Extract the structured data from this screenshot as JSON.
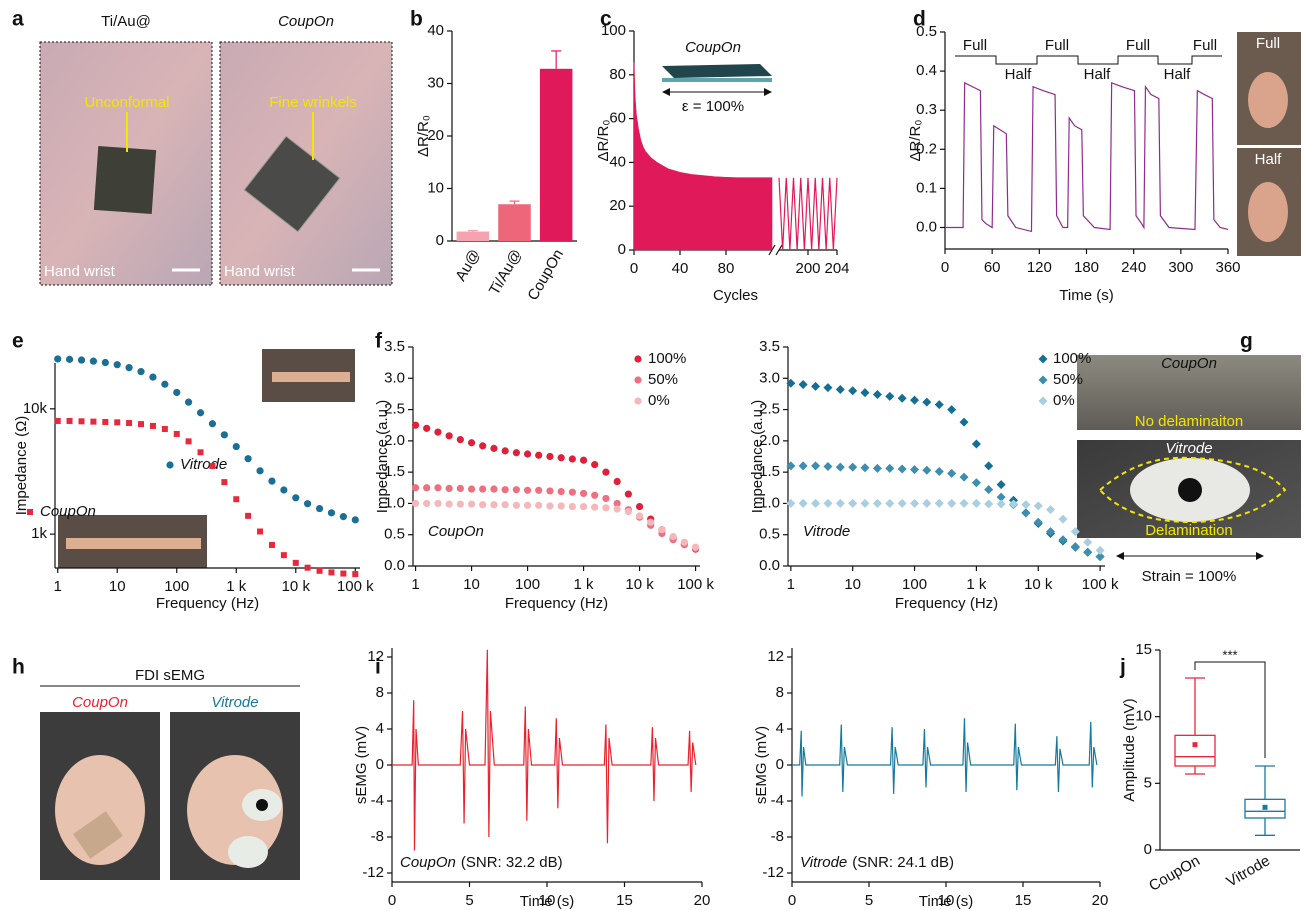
{
  "photos": {
    "a": {
      "panel": "a",
      "titles": [
        "Ti/Au@",
        "CoupOn"
      ],
      "callouts": [
        "Unconformal",
        "Fine wrinkels"
      ],
      "location": [
        "Hand wrist",
        "Hand wrist"
      ]
    },
    "d": {
      "labels": [
        "Full",
        "Half"
      ]
    },
    "g": {
      "panel": "g",
      "titles": [
        "CoupOn",
        "Vitrode"
      ],
      "callouts": [
        "No delaminaiton",
        "Delamination"
      ],
      "strain": "Strain = 100%"
    },
    "h": {
      "panel": "h",
      "title": "FDI sEMG",
      "labels": [
        "CoupOn",
        "Vitrode"
      ]
    }
  },
  "chart_data": [
    {
      "type": "bar",
      "panel": "b",
      "ylabel": "ΔR/R₀",
      "categories": [
        "Au@",
        "Ti/Au@",
        "CoupOn"
      ],
      "values": [
        1.8,
        7,
        32.8
      ],
      "errors": [
        0.2,
        0.6,
        3.4
      ],
      "colors": [
        "#f5a3ae",
        "#ee6679",
        "#e0195a"
      ],
      "ylim": [
        0,
        40
      ],
      "yticks": [
        0,
        10,
        20,
        30,
        40
      ]
    },
    {
      "type": "area",
      "panel": "c",
      "xlabel": "Cycles",
      "ylabel": "ΔR/R₀",
      "inset_title": "CoupOn",
      "inset_text": "ε = 100%",
      "xlim": [
        0,
        204
      ],
      "xbreak": [
        120,
        196
      ],
      "xticks": [
        0,
        40,
        80,
        200,
        204
      ],
      "ylim": [
        0,
        100
      ],
      "yticks": [
        0,
        20,
        40,
        60,
        80,
        100
      ],
      "series": [
        {
          "color": "#e0195a",
          "fill": true,
          "x": [
            0,
            1,
            2,
            4,
            6,
            8,
            10,
            15,
            20,
            30,
            40,
            50,
            60,
            70,
            80,
            90,
            100,
            110,
            120
          ],
          "values": [
            86,
            70,
            62,
            55,
            50,
            47,
            45,
            42,
            40,
            37,
            35.5,
            34.5,
            34,
            33.5,
            33.2,
            33,
            33,
            33,
            33
          ]
        },
        {
          "color": "#e0195a",
          "x": [
            196,
            196.5,
            197,
            197.5,
            198,
            198.5,
            199,
            199.5,
            200,
            200.5,
            201,
            201.5,
            202,
            202.5,
            203,
            203.5,
            204
          ],
          "values": [
            33,
            0,
            33,
            0,
            33,
            0,
            33,
            0,
            33,
            0,
            33,
            0,
            33,
            0,
            33,
            0,
            33
          ]
        }
      ]
    },
    {
      "type": "line",
      "panel": "d",
      "xlabel": "Time (s)",
      "ylabel": "ΔR/R₀",
      "annotations": [
        "Full",
        "Half",
        "Full",
        "Half",
        "Full",
        "Half",
        "Full"
      ],
      "xlim": [
        0,
        360
      ],
      "xticks": [
        0,
        60,
        120,
        180,
        240,
        300,
        360
      ],
      "ylim": [
        -0.055,
        0.5
      ],
      "yticks": [
        {
          "value": 0,
          "label": "0.0"
        },
        0.1,
        0.2,
        0.3,
        0.4,
        0.5
      ],
      "series": [
        {
          "color": "#8e2c90",
          "x": [
            0,
            23,
            25,
            35,
            45,
            47,
            52,
            60,
            62,
            70,
            78,
            80,
            90,
            110,
            112,
            125,
            140,
            142,
            150,
            156,
            158,
            165,
            174,
            176,
            190,
            210,
            212,
            225,
            241,
            243,
            250,
            253,
            255,
            262,
            272,
            274,
            285,
            318,
            321,
            330,
            340,
            342,
            350,
            360
          ],
          "values": [
            0,
            0,
            0.37,
            0.36,
            0.35,
            0.02,
            0.01,
            0,
            0.26,
            0.25,
            0.24,
            0.03,
            0,
            -0.01,
            0.36,
            0.35,
            0.34,
            0.03,
            0,
            0,
            0.28,
            0.26,
            0.25,
            0.03,
            0,
            -0.005,
            0.37,
            0.36,
            0.35,
            0.03,
            0.01,
            0,
            0.36,
            0.34,
            0.33,
            0.03,
            0,
            -0.005,
            0.35,
            0.34,
            0.33,
            0.02,
            0,
            -0.005
          ]
        }
      ]
    },
    {
      "type": "scatter",
      "panel": "e",
      "xlabel": "Frequency (Hz)",
      "ylabel": "Impedance (Ω)",
      "xlog": true,
      "ylog": true,
      "xlim": [
        0.9,
        120000
      ],
      "xticks": [
        1,
        10,
        100,
        {
          "value": 1000,
          "label": "1 k"
        },
        {
          "value": 10000,
          "label": "10 k"
        },
        {
          "value": 100000,
          "label": "100 k"
        }
      ],
      "ylim": [
        537,
        23200
      ],
      "yticks": [
        {
          "value": 1000,
          "label": "1k"
        },
        {
          "value": 10000,
          "label": "10k"
        }
      ],
      "x": [
        1,
        1.58,
        2.51,
        3.98,
        6.31,
        10,
        15.8,
        25.1,
        39.8,
        63.1,
        100,
        158,
        251,
        398,
        631,
        1000,
        1580,
        2510,
        3980,
        6310,
        10000,
        15800,
        25100,
        39800,
        63100,
        100000
      ],
      "series": [
        {
          "name": "Vitrode",
          "color": "#1a6f96",
          "marker": "circle",
          "values": [
            25000,
            24800,
            24500,
            24000,
            23400,
            22500,
            21300,
            19800,
            17900,
            15700,
            13500,
            11300,
            9300,
            7600,
            6200,
            5000,
            4000,
            3200,
            2650,
            2250,
            1950,
            1750,
            1600,
            1480,
            1380,
            1300
          ]
        },
        {
          "name": "CoupOn",
          "color": "#e8283c",
          "marker": "square",
          "values": [
            8000,
            8000,
            7950,
            7900,
            7850,
            7800,
            7700,
            7550,
            7300,
            6900,
            6300,
            5500,
            4500,
            3500,
            2600,
            1900,
            1400,
            1050,
            820,
            680,
            590,
            540,
            510,
            495,
            485,
            480
          ]
        }
      ]
    },
    {
      "type": "scatter",
      "panel": "f",
      "xlabel": "Frequency (Hz)",
      "ylabel": "Impedance (a.u.)",
      "annotation": "CoupOn",
      "xlog": true,
      "legend": "upper right",
      "xlim": [
        0.9,
        120000
      ],
      "xticks": [
        1,
        10,
        100,
        {
          "value": 1000,
          "label": "1 k"
        },
        {
          "value": 10000,
          "label": "10 k"
        },
        {
          "value": 100000,
          "label": "100 k"
        }
      ],
      "ylim": [
        0,
        3.5
      ],
      "yticks": [
        {
          "value": 0,
          "label": "0.0"
        },
        0.5,
        {
          "value": 1,
          "label": "1.0"
        },
        1.5,
        {
          "value": 2,
          "label": "2.0"
        },
        2.5,
        {
          "value": 3,
          "label": "3.0"
        },
        3.5
      ],
      "x": [
        1,
        1.58,
        2.51,
        3.98,
        6.31,
        10,
        15.8,
        25.1,
        39.8,
        63.1,
        100,
        158,
        251,
        398,
        631,
        1000,
        1580,
        2510,
        3980,
        6310,
        10000,
        15800,
        25100,
        39800,
        63100,
        100000
      ],
      "series": [
        {
          "name": "100%",
          "color": "#e0203a",
          "marker": "circle",
          "values": [
            2.25,
            2.2,
            2.14,
            2.08,
            2.02,
            1.97,
            1.92,
            1.88,
            1.84,
            1.81,
            1.79,
            1.77,
            1.75,
            1.73,
            1.71,
            1.69,
            1.62,
            1.5,
            1.35,
            1.15,
            0.95,
            0.75,
            0.58,
            0.45,
            0.35,
            0.27
          ]
        },
        {
          "name": "50%",
          "color": "#ee7080",
          "marker": "circle",
          "values": [
            1.25,
            1.25,
            1.25,
            1.24,
            1.24,
            1.23,
            1.23,
            1.23,
            1.22,
            1.22,
            1.21,
            1.21,
            1.2,
            1.19,
            1.18,
            1.16,
            1.13,
            1.08,
            1,
            0.9,
            0.78,
            0.65,
            0.52,
            0.42,
            0.34,
            0.28
          ]
        },
        {
          "name": "0%",
          "color": "#f6b7ba",
          "marker": "circle",
          "values": [
            1,
            1,
            1,
            0.99,
            0.99,
            0.99,
            0.98,
            0.98,
            0.98,
            0.97,
            0.97,
            0.97,
            0.96,
            0.96,
            0.95,
            0.95,
            0.94,
            0.93,
            0.91,
            0.87,
            0.8,
            0.7,
            0.58,
            0.47,
            0.38,
            0.3
          ]
        }
      ]
    },
    {
      "type": "scatter",
      "xlabel": "Frequency (Hz)",
      "ylabel": "Impedance (a.u.)",
      "annotation": "Vitrode",
      "xlog": true,
      "legend": "upper right",
      "xlim": [
        0.9,
        120000
      ],
      "xticks": [
        1,
        10,
        100,
        {
          "value": 1000,
          "label": "1 k"
        },
        {
          "value": 10000,
          "label": "10 k"
        },
        {
          "value": 100000,
          "label": "100 k"
        }
      ],
      "ylim": [
        0,
        3.5
      ],
      "yticks": [
        {
          "value": 0,
          "label": "0.0"
        },
        0.5,
        {
          "value": 1,
          "label": "1.0"
        },
        1.5,
        {
          "value": 2,
          "label": "2.0"
        },
        2.5,
        {
          "value": 3,
          "label": "3.0"
        },
        3.5
      ],
      "x": [
        1,
        1.58,
        2.51,
        3.98,
        6.31,
        10,
        15.8,
        25.1,
        39.8,
        63.1,
        100,
        158,
        251,
        398,
        631,
        1000,
        1580,
        2510,
        3980,
        6310,
        10000,
        15800,
        25100,
        39800,
        63100,
        100000
      ],
      "series": [
        {
          "name": "100%",
          "color": "#146f94",
          "marker": "diamond",
          "values": [
            2.92,
            2.9,
            2.87,
            2.85,
            2.82,
            2.8,
            2.77,
            2.74,
            2.71,
            2.68,
            2.65,
            2.62,
            2.58,
            2.5,
            2.3,
            1.95,
            1.6,
            1.3,
            1.05,
            0.85,
            0.68,
            0.52,
            0.4,
            0.3,
            0.22,
            0.15
          ]
        },
        {
          "name": "50%",
          "color": "#3d8db0",
          "marker": "diamond",
          "values": [
            1.6,
            1.6,
            1.6,
            1.59,
            1.58,
            1.58,
            1.57,
            1.56,
            1.56,
            1.55,
            1.54,
            1.53,
            1.51,
            1.48,
            1.42,
            1.33,
            1.22,
            1.1,
            0.98,
            0.85,
            0.7,
            0.55,
            0.42,
            0.31,
            0.22,
            0.15
          ]
        },
        {
          "name": "0%",
          "color": "#a8cfe0",
          "marker": "diamond",
          "values": [
            1,
            1,
            1,
            1,
            1,
            1,
            1,
            1,
            1,
            1,
            1,
            1,
            1,
            1,
            1,
            1,
            0.99,
            0.99,
            0.99,
            0.98,
            0.96,
            0.9,
            0.75,
            0.55,
            0.38,
            0.25
          ]
        }
      ]
    },
    {
      "type": "line",
      "panel": "i",
      "xlabel": "Time (s)",
      "ylabel": "sEMG (mV)",
      "annotation": {
        "name": "CoupOn",
        "text": "(SNR: 32.2 dB)"
      },
      "xlim": [
        0,
        20
      ],
      "xticks": [
        0,
        5,
        10,
        15,
        20
      ],
      "ylim": [
        -13,
        13
      ],
      "yticks": [
        -12,
        -8,
        -4,
        0,
        4,
        8,
        12
      ],
      "series": [
        {
          "color": "#e8232e",
          "x": [
            0,
            1.3,
            1.4,
            1.45,
            1.55,
            1.7,
            4.4,
            4.55,
            4.65,
            4.75,
            5,
            6,
            6.15,
            6.25,
            6.35,
            6.6,
            8.5,
            8.6,
            8.7,
            8.8,
            9,
            10.5,
            10.6,
            10.7,
            10.8,
            11,
            13.7,
            13.8,
            13.9,
            14,
            14.2,
            16.7,
            16.8,
            16.9,
            17,
            17.2,
            19.1,
            19.2,
            19.3,
            19.4,
            19.6
          ],
          "values": [
            0,
            0,
            7.2,
            -9.5,
            4,
            0,
            0,
            6,
            -6.5,
            4,
            0,
            0,
            12.8,
            -8,
            6,
            0,
            0,
            6.5,
            -6.2,
            4,
            0,
            0,
            5.2,
            -4.8,
            3,
            0,
            0,
            4.5,
            -8.7,
            3,
            0,
            0,
            4.2,
            -4,
            3,
            0,
            0,
            3.8,
            -3,
            2.5,
            0
          ]
        }
      ]
    },
    {
      "type": "line",
      "xlabel": "Time (s)",
      "ylabel": "sEMG (mV)",
      "annotation": {
        "name": "Vitrode",
        "text": "(SNR: 24.1 dB)"
      },
      "xlim": [
        0,
        20
      ],
      "xticks": [
        0,
        5,
        10,
        15,
        20
      ],
      "ylim": [
        -13,
        13
      ],
      "yticks": [
        -12,
        -8,
        -4,
        0,
        4,
        8,
        12
      ],
      "series": [
        {
          "color": "#157a9c",
          "x": [
            0,
            0.5,
            0.6,
            0.65,
            0.75,
            0.9,
            3.1,
            3.2,
            3.3,
            3.4,
            3.6,
            6.4,
            6.5,
            6.6,
            6.7,
            6.9,
            8.5,
            8.6,
            8.7,
            8.8,
            9,
            11.1,
            11.2,
            11.3,
            11.4,
            11.6,
            14.4,
            14.5,
            14.6,
            14.7,
            14.9,
            17.1,
            17.2,
            17.3,
            17.4,
            17.6,
            19.3,
            19.4,
            19.5,
            19.6,
            19.8
          ],
          "values": [
            0,
            0,
            3.8,
            -3.5,
            2,
            0,
            0,
            4.5,
            -3,
            2,
            0,
            0,
            4.2,
            -3.2,
            2,
            0,
            0,
            4,
            -2.5,
            2,
            0,
            0,
            5.2,
            -3,
            2.5,
            0,
            0,
            4.6,
            -2.8,
            2,
            0,
            0,
            3.2,
            -3,
            1.8,
            0,
            0,
            4.8,
            -2.5,
            2,
            0
          ]
        }
      ]
    },
    {
      "type": "box",
      "panel": "j",
      "ylabel": "Amplitude (mV)",
      "annotation": "***",
      "categories": [
        "CoupOn",
        "Vitrode"
      ],
      "colors": [
        "#e8283c",
        "#1a7aa0"
      ],
      "min": [
        5.7,
        1.1
      ],
      "q1": [
        6.3,
        2.4
      ],
      "median": [
        7,
        2.9
      ],
      "q3": [
        8.6,
        3.8
      ],
      "max": [
        12.9,
        6.3
      ],
      "mean": [
        7.9,
        3.2
      ],
      "ylim": [
        0,
        15
      ],
      "yticks": [
        0,
        5,
        10,
        15
      ]
    }
  ]
}
